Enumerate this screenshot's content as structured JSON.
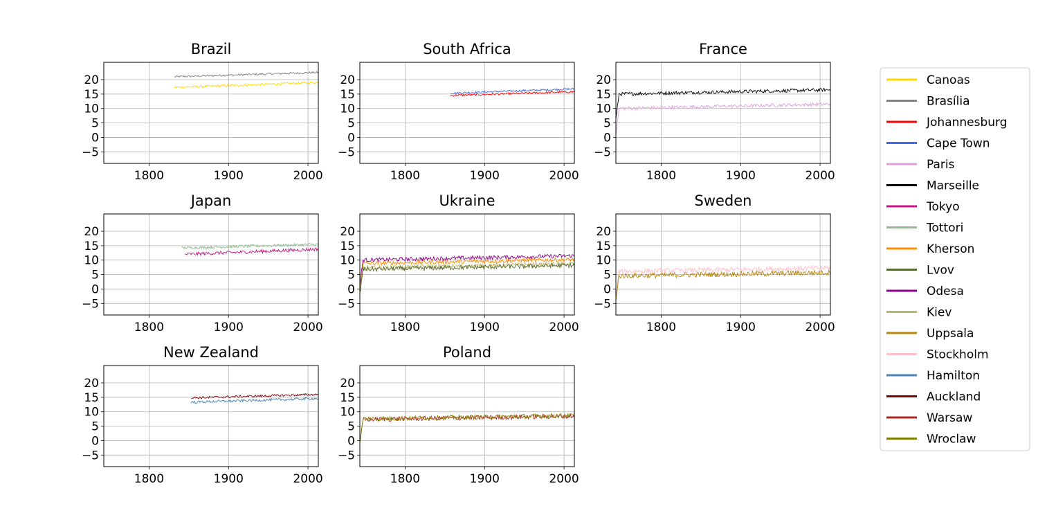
{
  "chart_data": {
    "type": "line",
    "layout": "small-multiples",
    "xlim": [
      1743,
      2013
    ],
    "ylim": [
      -9,
      26
    ],
    "xticks": [
      1800,
      1900,
      2000
    ],
    "yticks": [
      -5,
      0,
      5,
      10,
      15,
      20
    ],
    "ytick_labels": [
      "−5",
      "0",
      "5",
      "10",
      "15",
      "20"
    ],
    "grid": true,
    "legend_position": "right",
    "colors": {
      "Canoas": "#FFD700",
      "Brasília": "#808080",
      "Johannesburg": "#FF0000",
      "Cape Town": "#4169E1",
      "Paris": "#DDA0DD",
      "Marseille": "#000000",
      "Tokyo": "#C71585",
      "Tottori": "#8FBC8F",
      "Kherson": "#FF8C00",
      "Lvov": "#556B2F",
      "Odesa": "#8B008B",
      "Kiev": "#BDB76B",
      "Uppsala": "#B8860B",
      "Stockholm": "#FFC0CB",
      "Hamilton": "#4682B4",
      "Auckland": "#800000",
      "Warsaw": "#B22222",
      "Wroclaw": "#808000"
    },
    "legend": [
      "Canoas",
      "Brasília",
      "Johannesburg",
      "Cape Town",
      "Paris",
      "Marseille",
      "Tokyo",
      "Tottori",
      "Kherson",
      "Lvov",
      "Odesa",
      "Kiev",
      "Uppsala",
      "Stockholm",
      "Hamilton",
      "Auckland",
      "Warsaw",
      "Wroclaw"
    ],
    "panels": [
      {
        "title": "Brazil",
        "series": [
          {
            "name": "Brasília",
            "x_start": 1832,
            "x_end": 2013,
            "y_start": 21.0,
            "y_end": 22.5,
            "noise": 0.35
          },
          {
            "name": "Canoas",
            "x_start": 1832,
            "x_end": 2013,
            "y_start": 17.3,
            "y_end": 19.0,
            "noise": 0.4
          }
        ]
      },
      {
        "title": "South Africa",
        "series": [
          {
            "name": "Cape Town",
            "x_start": 1857,
            "x_end": 2013,
            "y_start": 15.3,
            "y_end": 16.8,
            "noise": 0.35
          },
          {
            "name": "Johannesburg",
            "x_start": 1857,
            "x_end": 2013,
            "y_start": 14.5,
            "y_end": 15.8,
            "noise": 0.35
          }
        ]
      },
      {
        "title": "France",
        "series": [
          {
            "name": "Marseille",
            "x_start": 1743,
            "x_end": 2013,
            "y_start": 15.0,
            "y_end": 16.5,
            "noise": 0.6
          },
          {
            "name": "Paris",
            "x_start": 1743,
            "x_end": 2013,
            "y_start": 10.0,
            "y_end": 11.5,
            "noise": 0.6
          }
        ]
      },
      {
        "title": "Japan",
        "series": [
          {
            "name": "Tottori",
            "x_start": 1841,
            "x_end": 2013,
            "y_start": 14.2,
            "y_end": 15.5,
            "noise": 0.5
          },
          {
            "name": "Tokyo",
            "x_start": 1845,
            "x_end": 2013,
            "y_start": 12.0,
            "y_end": 13.8,
            "noise": 0.6
          }
        ]
      },
      {
        "title": "Ukraine",
        "series": [
          {
            "name": "Odesa",
            "x_start": 1743,
            "x_end": 2013,
            "y_start": 10.0,
            "y_end": 11.5,
            "noise": 0.7
          },
          {
            "name": "Kherson",
            "x_start": 1743,
            "x_end": 2013,
            "y_start": 8.8,
            "y_end": 10.2,
            "noise": 0.7
          },
          {
            "name": "Kiev",
            "x_start": 1743,
            "x_end": 2013,
            "y_start": 7.2,
            "y_end": 8.7,
            "noise": 0.8
          },
          {
            "name": "Lvov",
            "x_start": 1743,
            "x_end": 2013,
            "y_start": 6.8,
            "y_end": 8.2,
            "noise": 0.8
          }
        ]
      },
      {
        "title": "Sweden",
        "series": [
          {
            "name": "Stockholm",
            "x_start": 1743,
            "x_end": 2013,
            "y_start": 6.0,
            "y_end": 7.3,
            "noise": 0.9
          },
          {
            "name": "Uppsala",
            "x_start": 1743,
            "x_end": 2013,
            "y_start": 4.5,
            "y_end": 5.7,
            "noise": 0.9
          }
        ]
      },
      {
        "title": "New Zealand",
        "series": [
          {
            "name": "Auckland",
            "x_start": 1853,
            "x_end": 2013,
            "y_start": 14.8,
            "y_end": 16.0,
            "noise": 0.4
          },
          {
            "name": "Hamilton",
            "x_start": 1853,
            "x_end": 2013,
            "y_start": 13.3,
            "y_end": 14.6,
            "noise": 0.45
          }
        ]
      },
      {
        "title": "Poland",
        "series": [
          {
            "name": "Warsaw",
            "x_start": 1743,
            "x_end": 2013,
            "y_start": 7.3,
            "y_end": 8.5,
            "noise": 0.8
          },
          {
            "name": "Wroclaw",
            "x_start": 1743,
            "x_end": 2013,
            "y_start": 7.5,
            "y_end": 8.7,
            "noise": 0.8
          }
        ]
      }
    ]
  }
}
